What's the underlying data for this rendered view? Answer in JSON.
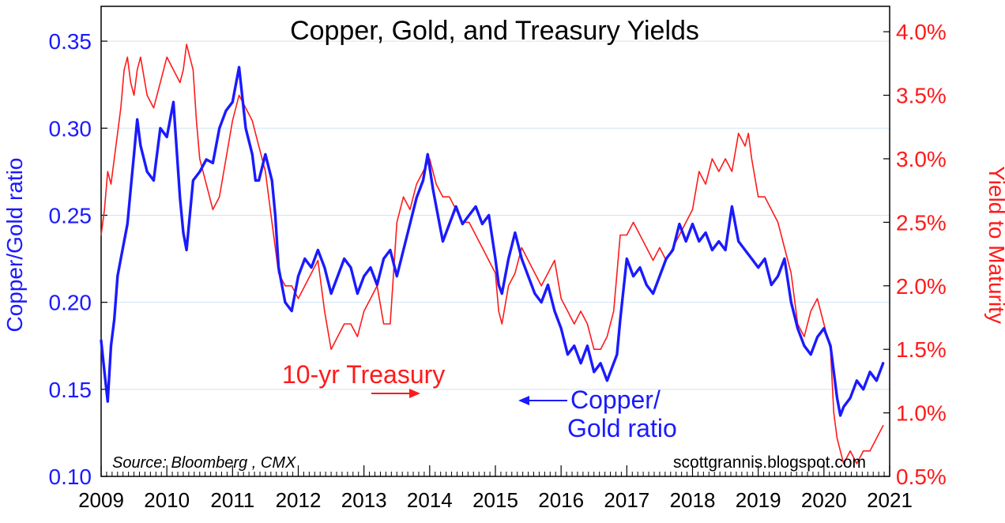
{
  "chart_data": {
    "type": "line",
    "title": "Copper, Gold, and Treasury Yields",
    "ylabel_left": "Copper/Gold ratio",
    "ylabel_right": "Yield to Maturity",
    "ylim_left": [
      0.1,
      0.37
    ],
    "ylim_right": [
      0.5,
      4.2
    ],
    "xlim": [
      2009,
      2021
    ],
    "x_ticks": [
      "2009",
      "2010",
      "2011",
      "2012",
      "2013",
      "2014",
      "2015",
      "2016",
      "2017",
      "2018",
      "2019",
      "2020",
      "2021"
    ],
    "left_ticks": [
      "0.10",
      "0.15",
      "0.20",
      "0.25",
      "0.30",
      "0.35"
    ],
    "right_ticks": [
      "0.5%",
      "1.0%",
      "1.5%",
      "2.0%",
      "2.5%",
      "3.0%",
      "3.5%",
      "4.0%"
    ],
    "grid": true,
    "annotations": {
      "treasury_label": "10-yr Treasury",
      "copper_label_line1": "Copper/",
      "copper_label_line2": "Gold ratio",
      "source": "Source: Bloomberg , CMX",
      "website": "scottgrannis.blogspot.com"
    },
    "series": [
      {
        "name": "Copper/Gold ratio",
        "axis": "left",
        "color": "#1a1aff",
        "x": [
          2009.0,
          2009.05,
          2009.1,
          2009.15,
          2009.2,
          2009.25,
          2009.3,
          2009.35,
          2009.4,
          2009.45,
          2009.5,
          2009.55,
          2009.6,
          2009.7,
          2009.8,
          2009.9,
          2010.0,
          2010.1,
          2010.2,
          2010.25,
          2010.3,
          2010.4,
          2010.5,
          2010.6,
          2010.7,
          2010.8,
          2010.9,
          2011.0,
          2011.1,
          2011.2,
          2011.3,
          2011.35,
          2011.4,
          2011.5,
          2011.6,
          2011.65,
          2011.7,
          2011.8,
          2011.9,
          2012.0,
          2012.1,
          2012.2,
          2012.3,
          2012.4,
          2012.5,
          2012.6,
          2012.7,
          2012.8,
          2012.9,
          2013.0,
          2013.1,
          2013.2,
          2013.3,
          2013.4,
          2013.5,
          2013.6,
          2013.7,
          2013.8,
          2013.9,
          2013.97,
          2014.05,
          2014.1,
          2014.2,
          2014.3,
          2014.4,
          2014.5,
          2014.6,
          2014.7,
          2014.8,
          2014.9,
          2015.0,
          2015.05,
          2015.1,
          2015.2,
          2015.3,
          2015.4,
          2015.5,
          2015.6,
          2015.7,
          2015.8,
          2015.9,
          2016.0,
          2016.1,
          2016.2,
          2016.3,
          2016.4,
          2016.5,
          2016.6,
          2016.7,
          2016.8,
          2016.85,
          2016.9,
          2017.0,
          2017.1,
          2017.2,
          2017.3,
          2017.4,
          2017.5,
          2017.6,
          2017.7,
          2017.8,
          2017.9,
          2018.0,
          2018.1,
          2018.2,
          2018.3,
          2018.4,
          2018.5,
          2018.6,
          2018.7,
          2018.8,
          2018.9,
          2019.0,
          2019.1,
          2019.2,
          2019.3,
          2019.4,
          2019.5,
          2019.6,
          2019.7,
          2019.8,
          2019.9,
          2020.0,
          2020.1,
          2020.15,
          2020.2,
          2020.25,
          2020.3,
          2020.4,
          2020.5,
          2020.6,
          2020.7,
          2020.8,
          2020.9
        ],
        "y": [
          0.178,
          0.16,
          0.143,
          0.175,
          0.19,
          0.215,
          0.225,
          0.235,
          0.245,
          0.265,
          0.285,
          0.305,
          0.29,
          0.275,
          0.27,
          0.3,
          0.295,
          0.315,
          0.26,
          0.24,
          0.23,
          0.27,
          0.275,
          0.282,
          0.28,
          0.3,
          0.31,
          0.315,
          0.335,
          0.3,
          0.285,
          0.27,
          0.27,
          0.285,
          0.27,
          0.25,
          0.22,
          0.2,
          0.195,
          0.215,
          0.225,
          0.22,
          0.23,
          0.22,
          0.205,
          0.215,
          0.225,
          0.22,
          0.205,
          0.215,
          0.22,
          0.21,
          0.225,
          0.23,
          0.215,
          0.23,
          0.245,
          0.26,
          0.27,
          0.285,
          0.265,
          0.255,
          0.235,
          0.245,
          0.255,
          0.245,
          0.25,
          0.255,
          0.245,
          0.25,
          0.225,
          0.21,
          0.205,
          0.225,
          0.24,
          0.225,
          0.215,
          0.205,
          0.2,
          0.21,
          0.195,
          0.185,
          0.17,
          0.175,
          0.165,
          0.175,
          0.16,
          0.165,
          0.155,
          0.165,
          0.17,
          0.19,
          0.225,
          0.215,
          0.22,
          0.21,
          0.205,
          0.215,
          0.225,
          0.23,
          0.245,
          0.235,
          0.245,
          0.235,
          0.24,
          0.23,
          0.235,
          0.23,
          0.255,
          0.235,
          0.23,
          0.225,
          0.22,
          0.225,
          0.21,
          0.215,
          0.225,
          0.2,
          0.185,
          0.175,
          0.17,
          0.18,
          0.185,
          0.175,
          0.16,
          0.145,
          0.135,
          0.14,
          0.145,
          0.155,
          0.15,
          0.16,
          0.155,
          0.165
        ]
      },
      {
        "name": "10-yr Treasury",
        "axis": "right",
        "color": "#ff1a1a",
        "x": [
          2009.0,
          2009.05,
          2009.1,
          2009.15,
          2009.2,
          2009.25,
          2009.3,
          2009.35,
          2009.4,
          2009.45,
          2009.5,
          2009.55,
          2009.6,
          2009.7,
          2009.8,
          2009.9,
          2010.0,
          2010.1,
          2010.2,
          2010.25,
          2010.3,
          2010.35,
          2010.4,
          2010.45,
          2010.5,
          2010.6,
          2010.7,
          2010.8,
          2010.9,
          2011.0,
          2011.1,
          2011.2,
          2011.3,
          2011.35,
          2011.4,
          2011.5,
          2011.6,
          2011.65,
          2011.7,
          2011.8,
          2011.9,
          2012.0,
          2012.1,
          2012.2,
          2012.3,
          2012.4,
          2012.5,
          2012.6,
          2012.7,
          2012.8,
          2012.9,
          2013.0,
          2013.1,
          2013.2,
          2013.3,
          2013.4,
          2013.5,
          2013.6,
          2013.7,
          2013.8,
          2013.9,
          2014.0,
          2014.1,
          2014.2,
          2014.3,
          2014.4,
          2014.5,
          2014.6,
          2014.7,
          2014.8,
          2014.9,
          2015.0,
          2015.05,
          2015.1,
          2015.2,
          2015.3,
          2015.4,
          2015.5,
          2015.6,
          2015.7,
          2015.8,
          2015.9,
          2016.0,
          2016.1,
          2016.2,
          2016.3,
          2016.4,
          2016.5,
          2016.6,
          2016.7,
          2016.8,
          2016.85,
          2016.9,
          2017.0,
          2017.1,
          2017.2,
          2017.3,
          2017.4,
          2017.5,
          2017.6,
          2017.7,
          2017.8,
          2017.9,
          2018.0,
          2018.1,
          2018.2,
          2018.3,
          2018.4,
          2018.5,
          2018.6,
          2018.7,
          2018.8,
          2018.85,
          2018.9,
          2019.0,
          2019.1,
          2019.2,
          2019.3,
          2019.4,
          2019.5,
          2019.6,
          2019.7,
          2019.8,
          2019.9,
          2020.0,
          2020.1,
          2020.15,
          2020.2,
          2020.25,
          2020.3,
          2020.4,
          2020.5,
          2020.6,
          2020.7,
          2020.8,
          2020.9
        ],
        "y": [
          2.4,
          2.6,
          2.9,
          2.8,
          3.0,
          3.2,
          3.4,
          3.7,
          3.8,
          3.6,
          3.5,
          3.7,
          3.8,
          3.5,
          3.4,
          3.6,
          3.8,
          3.7,
          3.6,
          3.7,
          3.9,
          3.8,
          3.7,
          3.3,
          3.0,
          2.8,
          2.6,
          2.7,
          3.0,
          3.3,
          3.5,
          3.4,
          3.3,
          3.2,
          3.1,
          2.9,
          2.5,
          2.3,
          2.1,
          2.0,
          2.0,
          1.9,
          2.0,
          2.1,
          2.2,
          1.8,
          1.5,
          1.6,
          1.7,
          1.7,
          1.6,
          1.8,
          1.9,
          2.0,
          1.7,
          1.7,
          2.5,
          2.7,
          2.6,
          2.8,
          2.9,
          3.0,
          2.8,
          2.7,
          2.7,
          2.6,
          2.5,
          2.5,
          2.4,
          2.3,
          2.2,
          2.1,
          1.8,
          1.7,
          2.0,
          2.1,
          2.3,
          2.2,
          2.1,
          2.0,
          2.1,
          2.2,
          1.9,
          1.8,
          1.7,
          1.8,
          1.7,
          1.5,
          1.5,
          1.6,
          1.8,
          2.1,
          2.4,
          2.4,
          2.5,
          2.4,
          2.3,
          2.2,
          2.3,
          2.2,
          2.3,
          2.4,
          2.5,
          2.6,
          2.9,
          2.8,
          3.0,
          2.9,
          3.0,
          2.9,
          3.2,
          3.1,
          3.2,
          3.0,
          2.7,
          2.7,
          2.6,
          2.5,
          2.3,
          2.1,
          1.7,
          1.6,
          1.8,
          1.9,
          1.7,
          1.5,
          1.0,
          0.8,
          0.7,
          0.6,
          0.7,
          0.6,
          0.7,
          0.7,
          0.8,
          0.9
        ]
      }
    ]
  }
}
